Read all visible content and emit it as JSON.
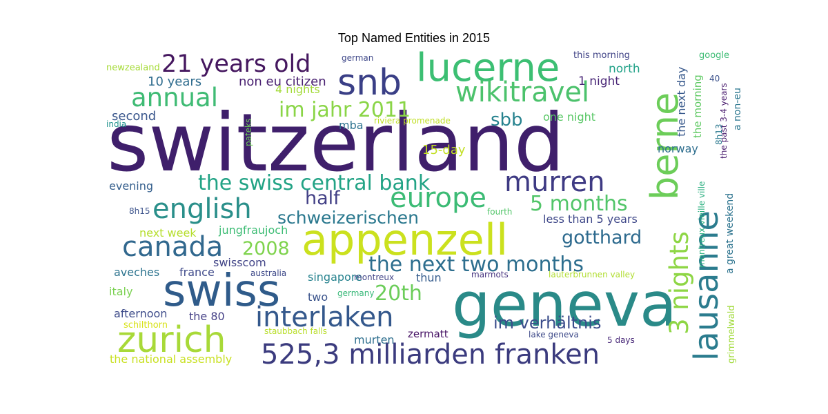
{
  "chart_data": {
    "type": "wordcloud",
    "title": "Top Named Entities in 2015",
    "words": [
      {
        "text": "switzerland",
        "color": "#3f1f6b"
      },
      {
        "text": "geneva",
        "color": "#2a8a88"
      },
      {
        "text": "appenzell",
        "color": "#cbe11e"
      },
      {
        "text": "lucerne",
        "color": "#3cbf73"
      },
      {
        "text": "swiss",
        "color": "#2f5b8a"
      },
      {
        "text": "zurich",
        "color": "#a8d938"
      },
      {
        "text": "snb",
        "color": "#3a3f86"
      },
      {
        "text": "berne",
        "color": "#6ccd59"
      },
      {
        "text": "lausanne",
        "color": "#2b7c8e"
      },
      {
        "text": "wikitravel",
        "color": "#4cc26c"
      },
      {
        "text": "525,3 milliarden franken",
        "color": "#3b3b7e"
      },
      {
        "text": "interlaken",
        "color": "#34588c"
      },
      {
        "text": "english",
        "color": "#2a8f8a"
      },
      {
        "text": "canada",
        "color": "#31688e"
      },
      {
        "text": "europe",
        "color": "#3cbb75"
      },
      {
        "text": "murren",
        "color": "#3e3a83"
      },
      {
        "text": "21 years old",
        "color": "#45175f"
      },
      {
        "text": "annual",
        "color": "#3fbb74"
      },
      {
        "text": "3 nights",
        "color": "#8ed645"
      },
      {
        "text": "the swiss central bank",
        "color": "#22a385"
      },
      {
        "text": "the next two months",
        "color": "#2d6e8e"
      },
      {
        "text": "5 months",
        "color": "#52c569"
      },
      {
        "text": "im jahr 2011",
        "color": "#8ad547"
      },
      {
        "text": "schweizerischen",
        "color": "#2a788e"
      },
      {
        "text": "im verhältnis",
        "color": "#3b4d8b"
      },
      {
        "text": "gotthard",
        "color": "#2d6a8e"
      },
      {
        "text": "20th",
        "color": "#6ccd5a"
      },
      {
        "text": "2008",
        "color": "#7fd34e"
      },
      {
        "text": "half",
        "color": "#424086"
      },
      {
        "text": "sbb",
        "color": "#26828e"
      },
      {
        "text": "10 years",
        "color": "#2f6c8e"
      },
      {
        "text": "non eu citizen",
        "color": "#481f70"
      },
      {
        "text": "4 nights",
        "color": "#a2da37"
      },
      {
        "text": "north",
        "color": "#1fa187"
      },
      {
        "text": "1 night",
        "color": "#482576"
      },
      {
        "text": "second",
        "color": "#39568c"
      },
      {
        "text": "mba",
        "color": "#2c728e"
      },
      {
        "text": "one night",
        "color": "#58c765"
      },
      {
        "text": "15-day",
        "color": "#c2df23"
      },
      {
        "text": "norway",
        "color": "#2e6e8e"
      },
      {
        "text": "evening",
        "color": "#355f8d"
      },
      {
        "text": "next week",
        "color": "#b5de2b"
      },
      {
        "text": "jungfraujoch",
        "color": "#3cbc74"
      },
      {
        "text": "less than 5 years",
        "color": "#3f4889"
      },
      {
        "text": "swisscom",
        "color": "#414487"
      },
      {
        "text": "aveches",
        "color": "#2c738e"
      },
      {
        "text": "france",
        "color": "#3f4a8a"
      },
      {
        "text": "singapore",
        "color": "#26828e"
      },
      {
        "text": "italy",
        "color": "#7ad151"
      },
      {
        "text": "two",
        "color": "#3a538b"
      },
      {
        "text": "thun",
        "color": "#365d8d"
      },
      {
        "text": "afternoon",
        "color": "#3e4c8a"
      },
      {
        "text": "the 80",
        "color": "#433e85"
      },
      {
        "text": "murten",
        "color": "#2e6f8e"
      },
      {
        "text": "zermatt",
        "color": "#471365"
      },
      {
        "text": "the national assembly",
        "color": "#c8e020"
      },
      {
        "text": "the next day",
        "color": "#38598c"
      },
      {
        "text": "the morning",
        "color": "#5ec962"
      },
      {
        "text": "google",
        "color": "#3dbc74"
      },
      {
        "text": "the past 3-4 years",
        "color": "#481b6d"
      },
      {
        "text": "a non-eu",
        "color": "#2a768e"
      },
      {
        "text": "a great weekend",
        "color": "#2c738e"
      },
      {
        "text": "grimmelwald",
        "color": "#a0da39"
      },
      {
        "text": "montreux vieille ville",
        "color": "#29af7f"
      },
      {
        "text": "newzealand",
        "color": "#a5db36"
      },
      {
        "text": "german",
        "color": "#3f4889"
      },
      {
        "text": "this morning",
        "color": "#414487"
      },
      {
        "text": "india",
        "color": "#20928c"
      },
      {
        "text": "riviera promenade",
        "color": "#c0df25"
      },
      {
        "text": "pateks",
        "color": "#6ece58"
      },
      {
        "text": "8h15",
        "color": "#3b528b"
      },
      {
        "text": "fourth",
        "color": "#52c569"
      },
      {
        "text": "australia",
        "color": "#3e4989"
      },
      {
        "text": "montreux",
        "color": "#414487"
      },
      {
        "text": "marmots",
        "color": "#46327e"
      },
      {
        "text": "lauterbrunnen valley",
        "color": "#b0dd2f"
      },
      {
        "text": "germany",
        "color": "#37b878"
      },
      {
        "text": "schilthorn",
        "color": "#d8e219"
      },
      {
        "text": "staubbach falls",
        "color": "#b8de29"
      },
      {
        "text": "lake geneva",
        "color": "#3e4a89"
      },
      {
        "text": "5 days",
        "color": "#482878"
      },
      {
        "text": "8h13",
        "color": "#2a788e"
      },
      {
        "text": "40",
        "color": "#3b518b"
      }
    ]
  }
}
